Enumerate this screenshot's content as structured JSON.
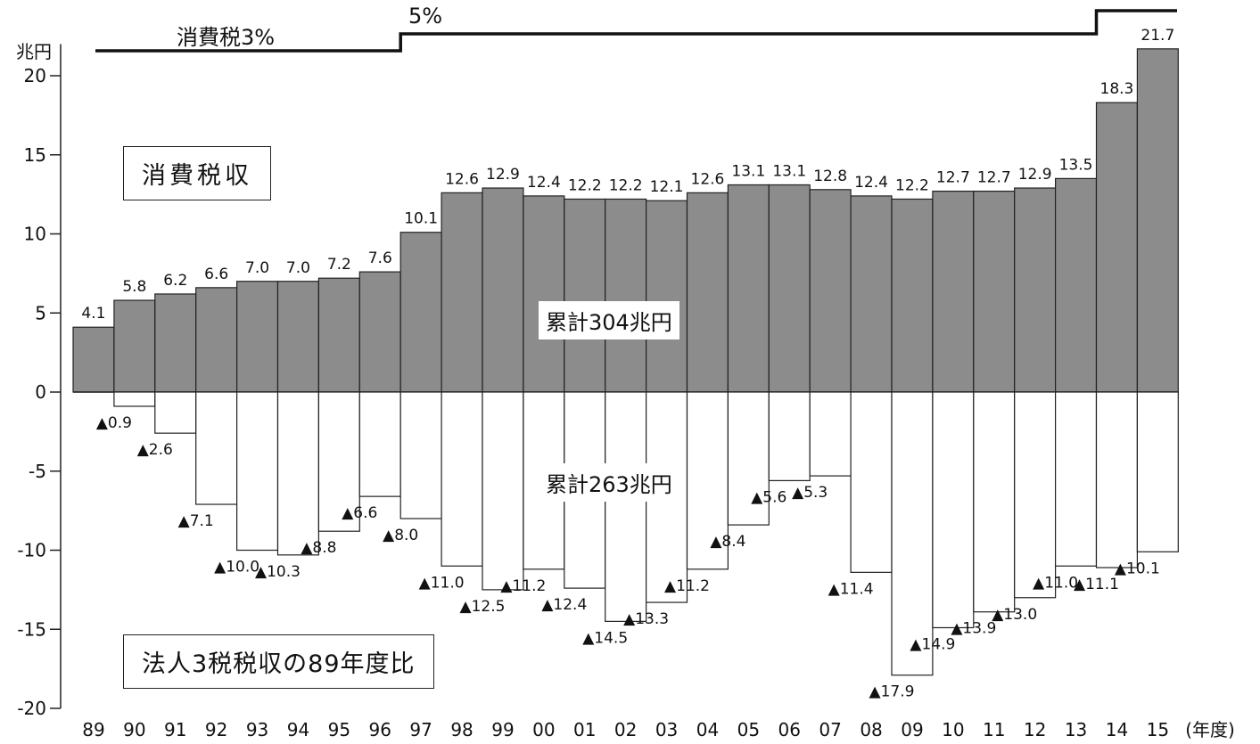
{
  "chart_data": {
    "type": "bar",
    "unit_label": "兆円",
    "xlabel": "(年度)",
    "ylim": [
      -20,
      22
    ],
    "yticks": [
      -20,
      -15,
      -10,
      -5,
      0,
      5,
      10,
      15,
      20
    ],
    "categories": [
      "89",
      "90",
      "91",
      "92",
      "93",
      "94",
      "95",
      "96",
      "97",
      "98",
      "99",
      "00",
      "01",
      "02",
      "03",
      "04",
      "05",
      "06",
      "07",
      "08",
      "09",
      "10",
      "11",
      "12",
      "13",
      "14",
      "15"
    ],
    "series": [
      {
        "name": "消費税収",
        "values": [
          4.1,
          5.8,
          6.2,
          6.6,
          7.0,
          7.0,
          7.2,
          7.6,
          10.1,
          12.6,
          12.9,
          12.4,
          12.2,
          12.2,
          12.1,
          12.6,
          13.1,
          13.1,
          12.8,
          12.4,
          12.2,
          12.7,
          12.7,
          12.9,
          13.5,
          18.3,
          21.7
        ],
        "labels": [
          "4.1",
          "5.8",
          "6.2",
          "6.6",
          "7.0",
          "7.0",
          "7.2",
          "7.6",
          "10.1",
          "12.6",
          "12.9",
          "12.4",
          "12.2",
          "12.2",
          "12.1",
          "12.6",
          "13.1",
          "13.1",
          "12.8",
          "12.4",
          "12.2",
          "12.7",
          "12.7",
          "12.9",
          "13.5",
          "18.3",
          "21.7"
        ]
      },
      {
        "name": "法人3税税収の89年度比",
        "values": [
          0,
          -0.9,
          -2.6,
          -7.1,
          -10.0,
          -10.3,
          -8.8,
          -6.6,
          -8.0,
          -11.0,
          -12.5,
          -11.2,
          -12.4,
          -14.5,
          -13.3,
          -11.2,
          -8.4,
          -5.6,
          -5.3,
          -11.4,
          -17.9,
          -14.9,
          -13.9,
          -13.0,
          -11.0,
          -11.1,
          -10.1
        ],
        "labels": [
          "",
          "▲0.9",
          "▲2.6",
          "▲7.1",
          "▲10.0",
          "▲10.3",
          "▲8.8",
          "▲6.6",
          "▲8.0",
          "▲11.0",
          "▲12.5",
          "▲11.2",
          "▲12.4",
          "▲14.5",
          "▲13.3",
          "▲11.2",
          "▲8.4",
          "▲5.6",
          "▲5.3",
          "▲11.4",
          "▲17.9",
          "▲14.9",
          "▲13.9",
          "▲13.0",
          "▲11.0",
          "▲11.1",
          "▲10.1"
        ]
      }
    ],
    "tax_rate_line": {
      "segments": [
        {
          "label": "消費税3%",
          "from": "89",
          "to": "96"
        },
        {
          "label": "5%",
          "from": "97",
          "to": "13"
        },
        {
          "label": "",
          "from": "14",
          "to": "15"
        }
      ]
    },
    "annotations": {
      "consumption_tax_box": "消費税収",
      "corporate_tax_box": "法人3税税収の89年度比",
      "cumulative_positive": "累計304兆円",
      "cumulative_negative": "累計263兆円"
    }
  }
}
